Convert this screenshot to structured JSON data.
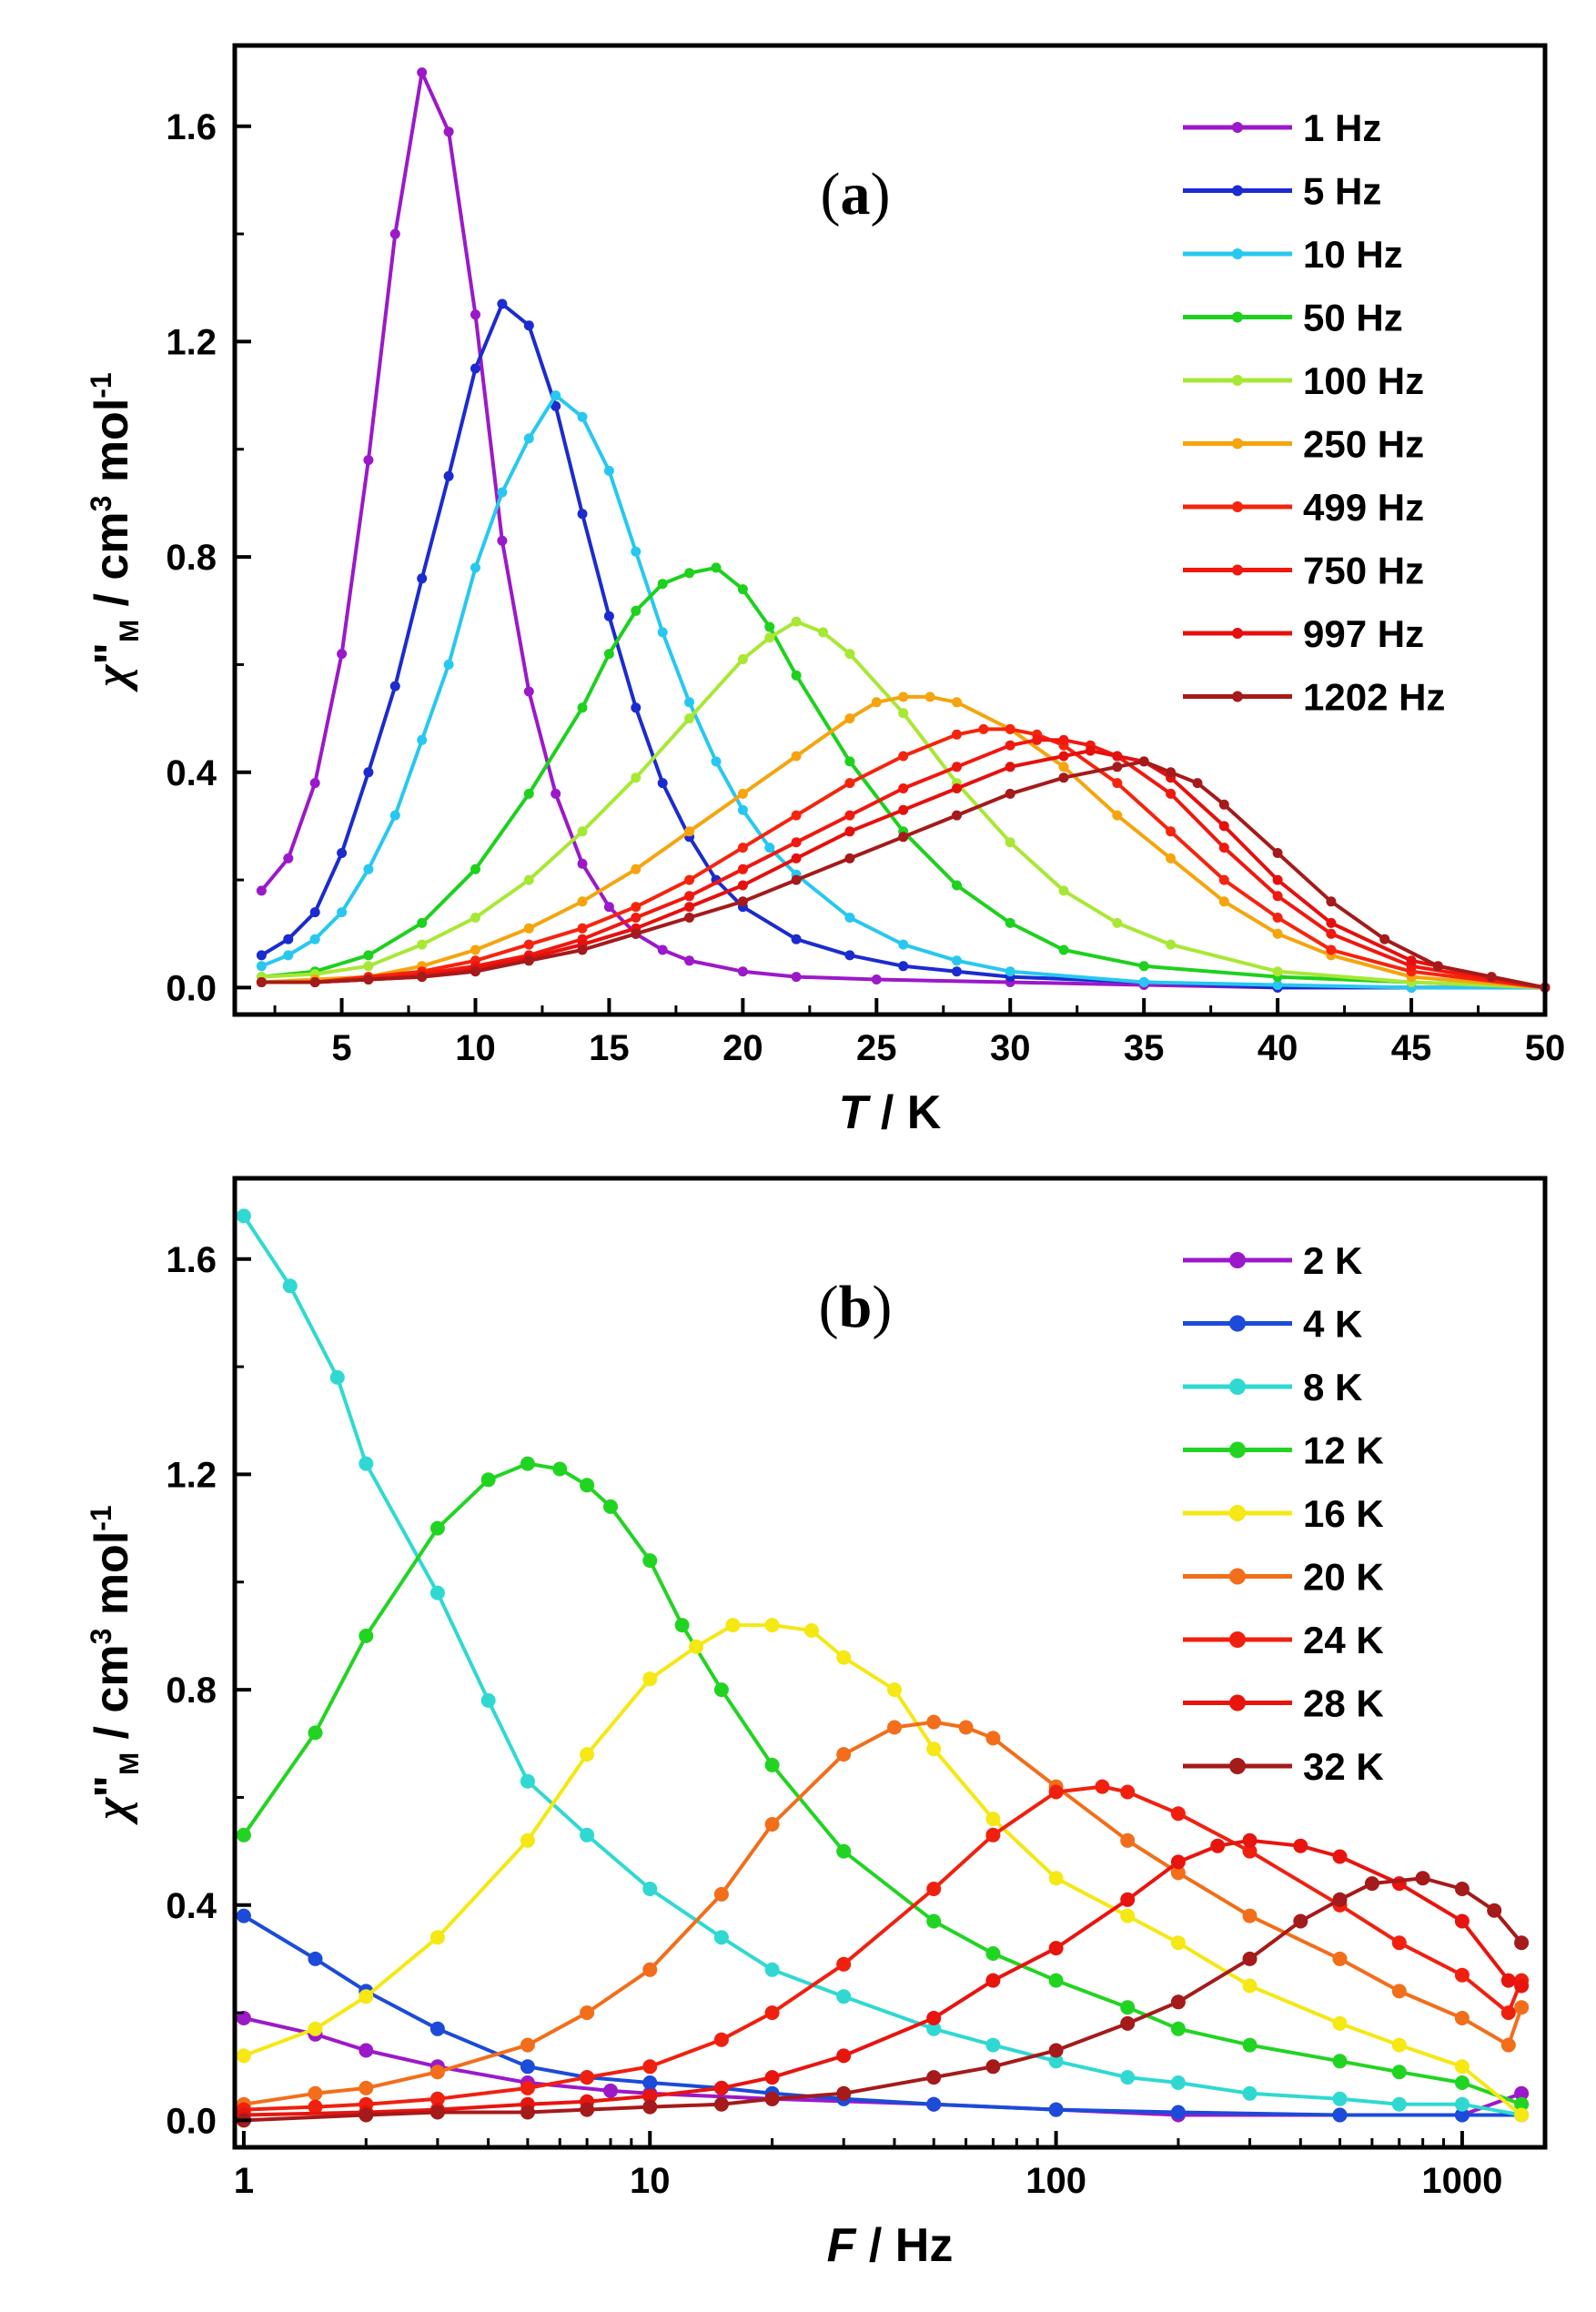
{
  "chart_data": [
    {
      "type": "line",
      "panel_label": {
        "open": "(",
        "letter": "a",
        "close": ")"
      },
      "xlabel": {
        "var": "T",
        "unit": " / K"
      },
      "ylabel": {
        "chi": "χ",
        "primes": "\"",
        "sub": "M",
        "unit": " / cm",
        "sup3": "3",
        "mol": " mol",
        "supm1": "-1"
      },
      "xlim": [
        1,
        50
      ],
      "ylim": [
        -0.05,
        1.75
      ],
      "xscale": "linear",
      "xticks": [
        5,
        10,
        15,
        20,
        25,
        30,
        35,
        40,
        45,
        50
      ],
      "xtick_labels": [
        "5",
        "10",
        "15",
        "20",
        "25",
        "30",
        "35",
        "40",
        "45",
        "50"
      ],
      "yticks": [
        0.0,
        0.4,
        0.8,
        1.2,
        1.6
      ],
      "ytick_labels": [
        "0.0",
        "0.4",
        "0.8",
        "1.2",
        "1.6"
      ],
      "legend_position": "top-right",
      "series": [
        {
          "name": "1 Hz",
          "color": "#9b19c9",
          "x": [
            2,
            3,
            4,
            5,
            6,
            7,
            8,
            9,
            10,
            11,
            12,
            13,
            14,
            15,
            16,
            17,
            18,
            20,
            22,
            25,
            30,
            35,
            40,
            45,
            50
          ],
          "y": [
            0.18,
            0.24,
            0.38,
            0.62,
            0.98,
            1.4,
            1.7,
            1.59,
            1.25,
            0.83,
            0.55,
            0.36,
            0.23,
            0.15,
            0.1,
            0.07,
            0.05,
            0.03,
            0.02,
            0.015,
            0.01,
            0.005,
            0.0,
            0.0,
            0.0
          ]
        },
        {
          "name": "5 Hz",
          "color": "#1b2bd0",
          "x": [
            2,
            3,
            4,
            5,
            6,
            7,
            8,
            9,
            10,
            11,
            12,
            13,
            14,
            15,
            16,
            17,
            18,
            19,
            20,
            22,
            24,
            26,
            28,
            30,
            35,
            40,
            45,
            50
          ],
          "y": [
            0.06,
            0.09,
            0.14,
            0.25,
            0.4,
            0.56,
            0.76,
            0.95,
            1.15,
            1.27,
            1.23,
            1.08,
            0.88,
            0.69,
            0.52,
            0.38,
            0.28,
            0.2,
            0.15,
            0.09,
            0.06,
            0.04,
            0.03,
            0.02,
            0.01,
            0.0,
            0.0,
            0.0
          ]
        },
        {
          "name": "10 Hz",
          "color": "#27c8f0",
          "x": [
            2,
            3,
            4,
            5,
            6,
            7,
            8,
            9,
            10,
            11,
            12,
            13,
            14,
            15,
            16,
            17,
            18,
            19,
            20,
            21,
            22,
            24,
            26,
            28,
            30,
            35,
            40,
            45,
            50
          ],
          "y": [
            0.04,
            0.06,
            0.09,
            0.14,
            0.22,
            0.32,
            0.46,
            0.6,
            0.78,
            0.92,
            1.02,
            1.1,
            1.06,
            0.96,
            0.81,
            0.66,
            0.53,
            0.42,
            0.33,
            0.26,
            0.21,
            0.13,
            0.08,
            0.05,
            0.03,
            0.01,
            0.005,
            0.0,
            0.0
          ]
        },
        {
          "name": "50 Hz",
          "color": "#1dd11d",
          "x": [
            2,
            4,
            6,
            8,
            10,
            12,
            14,
            15,
            16,
            17,
            18,
            19,
            20,
            21,
            22,
            24,
            26,
            28,
            30,
            32,
            35,
            40,
            45,
            50
          ],
          "y": [
            0.02,
            0.03,
            0.06,
            0.12,
            0.22,
            0.36,
            0.52,
            0.62,
            0.7,
            0.75,
            0.77,
            0.78,
            0.74,
            0.67,
            0.58,
            0.42,
            0.29,
            0.19,
            0.12,
            0.07,
            0.04,
            0.02,
            0.01,
            0.0
          ]
        },
        {
          "name": "100 Hz",
          "color": "#a8e835",
          "x": [
            2,
            4,
            6,
            8,
            10,
            12,
            14,
            16,
            18,
            20,
            21,
            22,
            23,
            24,
            26,
            28,
            30,
            32,
            34,
            36,
            40,
            45,
            50
          ],
          "y": [
            0.02,
            0.025,
            0.04,
            0.08,
            0.13,
            0.2,
            0.29,
            0.39,
            0.5,
            0.61,
            0.65,
            0.68,
            0.66,
            0.62,
            0.51,
            0.38,
            0.27,
            0.18,
            0.12,
            0.08,
            0.03,
            0.01,
            0.0
          ]
        },
        {
          "name": "250 Hz",
          "color": "#f5a40d",
          "x": [
            2,
            4,
            6,
            8,
            10,
            12,
            14,
            16,
            18,
            20,
            22,
            24,
            25,
            26,
            27,
            28,
            30,
            32,
            34,
            36,
            38,
            40,
            42,
            45,
            50
          ],
          "y": [
            0.01,
            0.015,
            0.02,
            0.04,
            0.07,
            0.11,
            0.16,
            0.22,
            0.29,
            0.36,
            0.43,
            0.5,
            0.53,
            0.54,
            0.54,
            0.53,
            0.48,
            0.41,
            0.32,
            0.24,
            0.16,
            0.1,
            0.06,
            0.02,
            0.0
          ]
        },
        {
          "name": "499 Hz",
          "color": "#f5240d",
          "x": [
            2,
            4,
            6,
            8,
            10,
            12,
            14,
            16,
            18,
            20,
            22,
            24,
            26,
            28,
            29,
            30,
            31,
            32,
            34,
            36,
            38,
            40,
            42,
            45,
            50
          ],
          "y": [
            0.01,
            0.01,
            0.02,
            0.03,
            0.05,
            0.08,
            0.11,
            0.15,
            0.2,
            0.26,
            0.32,
            0.38,
            0.43,
            0.47,
            0.48,
            0.48,
            0.47,
            0.45,
            0.38,
            0.29,
            0.2,
            0.13,
            0.07,
            0.03,
            0.0
          ]
        },
        {
          "name": "750 Hz",
          "color": "#f0180f",
          "x": [
            2,
            4,
            6,
            8,
            10,
            12,
            14,
            16,
            18,
            20,
            22,
            24,
            26,
            28,
            30,
            31,
            32,
            33,
            34,
            36,
            38,
            40,
            42,
            45,
            50
          ],
          "y": [
            0.01,
            0.01,
            0.015,
            0.025,
            0.04,
            0.06,
            0.09,
            0.13,
            0.17,
            0.22,
            0.27,
            0.32,
            0.37,
            0.41,
            0.45,
            0.46,
            0.46,
            0.45,
            0.43,
            0.36,
            0.26,
            0.17,
            0.1,
            0.04,
            0.0
          ]
        },
        {
          "name": "997 Hz",
          "color": "#e5100d",
          "x": [
            2,
            4,
            6,
            8,
            10,
            12,
            14,
            16,
            18,
            20,
            22,
            24,
            26,
            28,
            30,
            32,
            33,
            34,
            35,
            36,
            38,
            40,
            42,
            45,
            50
          ],
          "y": [
            0.01,
            0.01,
            0.015,
            0.02,
            0.035,
            0.055,
            0.08,
            0.11,
            0.15,
            0.19,
            0.24,
            0.29,
            0.33,
            0.37,
            0.41,
            0.43,
            0.44,
            0.43,
            0.42,
            0.39,
            0.3,
            0.2,
            0.12,
            0.05,
            0.0
          ]
        },
        {
          "name": "1202 Hz",
          "color": "#a51a1a",
          "x": [
            2,
            4,
            6,
            8,
            10,
            12,
            14,
            16,
            18,
            20,
            22,
            24,
            26,
            28,
            30,
            32,
            34,
            35,
            36,
            37,
            38,
            40,
            42,
            44,
            46,
            48,
            50
          ],
          "y": [
            0.01,
            0.01,
            0.015,
            0.02,
            0.03,
            0.05,
            0.07,
            0.1,
            0.13,
            0.16,
            0.2,
            0.24,
            0.28,
            0.32,
            0.36,
            0.39,
            0.41,
            0.42,
            0.4,
            0.38,
            0.34,
            0.25,
            0.16,
            0.09,
            0.04,
            0.02,
            0.0
          ]
        }
      ]
    },
    {
      "type": "line",
      "panel_label": {
        "open": "(",
        "letter": "b",
        "close": ")"
      },
      "xlabel": {
        "var": "F",
        "unit": " / Hz"
      },
      "ylabel": {
        "chi": "χ",
        "primes": "\"",
        "sub": "M",
        "unit": " / cm",
        "sup3": "3",
        "mol": " mol",
        "supm1": "-1"
      },
      "xlim": [
        0.95,
        1600
      ],
      "ylim": [
        -0.05,
        1.75
      ],
      "xscale": "log",
      "xticks": [
        1,
        10,
        100,
        1000
      ],
      "xtick_labels": [
        "1",
        "10",
        "100",
        "1000"
      ],
      "yticks": [
        0.0,
        0.4,
        0.8,
        1.2,
        1.6
      ],
      "ytick_labels": [
        "0.0",
        "0.4",
        "0.8",
        "1.2",
        "1.6"
      ],
      "legend_position": "top-right",
      "series": [
        {
          "name": "2 K",
          "color": "#9b19c9",
          "x": [
            1,
            1.5,
            2,
            3,
            5,
            8,
            10,
            20,
            50,
            100,
            200,
            500,
            1000,
            1400
          ],
          "y": [
            0.19,
            0.16,
            0.13,
            0.1,
            0.07,
            0.055,
            0.05,
            0.04,
            0.03,
            0.02,
            0.01,
            0.01,
            0.01,
            0.05
          ]
        },
        {
          "name": "4 K",
          "color": "#1b4bd8",
          "x": [
            1,
            1.5,
            2,
            3,
            5,
            7,
            10,
            15,
            20,
            30,
            50,
            100,
            200,
            500,
            1000,
            1400
          ],
          "y": [
            0.38,
            0.3,
            0.24,
            0.17,
            0.1,
            0.08,
            0.07,
            0.06,
            0.05,
            0.04,
            0.03,
            0.02,
            0.015,
            0.01,
            0.01,
            0.01
          ]
        },
        {
          "name": "8 K",
          "color": "#2fd9d2",
          "x": [
            1,
            1.3,
            1.7,
            2,
            3,
            4,
            5,
            7,
            10,
            15,
            20,
            30,
            50,
            70,
            100,
            150,
            200,
            300,
            500,
            700,
            1000,
            1400
          ],
          "y": [
            1.68,
            1.55,
            1.38,
            1.22,
            0.98,
            0.78,
            0.63,
            0.53,
            0.43,
            0.34,
            0.28,
            0.23,
            0.17,
            0.14,
            0.11,
            0.08,
            0.07,
            0.05,
            0.04,
            0.03,
            0.03,
            0.01
          ]
        },
        {
          "name": "12 K",
          "color": "#22d422",
          "x": [
            1,
            1.5,
            2,
            3,
            4,
            5,
            6,
            7,
            8,
            10,
            12,
            15,
            20,
            30,
            50,
            70,
            100,
            150,
            200,
            300,
            500,
            700,
            1000,
            1400
          ],
          "y": [
            0.53,
            0.72,
            0.9,
            1.1,
            1.19,
            1.22,
            1.21,
            1.18,
            1.14,
            1.04,
            0.92,
            0.8,
            0.66,
            0.5,
            0.37,
            0.31,
            0.26,
            0.21,
            0.17,
            0.14,
            0.11,
            0.09,
            0.07,
            0.03
          ]
        },
        {
          "name": "16 K",
          "color": "#f5e813",
          "x": [
            1,
            1.5,
            2,
            3,
            5,
            7,
            10,
            13,
            16,
            20,
            25,
            30,
            40,
            50,
            70,
            100,
            150,
            200,
            300,
            500,
            700,
            1000,
            1400
          ],
          "y": [
            0.12,
            0.17,
            0.23,
            0.34,
            0.52,
            0.68,
            0.82,
            0.88,
            0.92,
            0.92,
            0.91,
            0.86,
            0.8,
            0.69,
            0.56,
            0.45,
            0.38,
            0.33,
            0.25,
            0.18,
            0.14,
            0.1,
            0.01
          ]
        },
        {
          "name": "20 K",
          "color": "#f26e1a",
          "x": [
            1,
            1.5,
            2,
            3,
            5,
            7,
            10,
            15,
            20,
            30,
            40,
            50,
            60,
            70,
            100,
            150,
            200,
            300,
            500,
            700,
            1000,
            1300,
            1400
          ],
          "y": [
            0.03,
            0.05,
            0.06,
            0.09,
            0.14,
            0.2,
            0.28,
            0.42,
            0.55,
            0.68,
            0.73,
            0.74,
            0.73,
            0.71,
            0.62,
            0.52,
            0.46,
            0.38,
            0.3,
            0.24,
            0.19,
            0.14,
            0.21
          ]
        },
        {
          "name": "24 K",
          "color": "#f0200f",
          "x": [
            1,
            1.5,
            2,
            3,
            5,
            7,
            10,
            15,
            20,
            30,
            50,
            70,
            100,
            130,
            150,
            200,
            300,
            500,
            700,
            1000,
            1300,
            1400
          ],
          "y": [
            0.02,
            0.025,
            0.03,
            0.04,
            0.06,
            0.08,
            0.1,
            0.15,
            0.2,
            0.29,
            0.43,
            0.53,
            0.61,
            0.62,
            0.61,
            0.57,
            0.5,
            0.4,
            0.33,
            0.27,
            0.2,
            0.26
          ]
        },
        {
          "name": "28 K",
          "color": "#e8140e",
          "x": [
            1,
            2,
            3,
            5,
            7,
            10,
            15,
            20,
            30,
            50,
            70,
            100,
            150,
            200,
            250,
            300,
            400,
            500,
            700,
            1000,
            1300,
            1400
          ],
          "y": [
            0.01,
            0.015,
            0.02,
            0.03,
            0.035,
            0.045,
            0.06,
            0.08,
            0.12,
            0.19,
            0.26,
            0.32,
            0.41,
            0.48,
            0.51,
            0.52,
            0.51,
            0.49,
            0.44,
            0.37,
            0.26,
            0.25
          ]
        },
        {
          "name": "32 K",
          "color": "#a51a1a",
          "x": [
            1,
            2,
            3,
            5,
            7,
            10,
            15,
            20,
            30,
            50,
            70,
            100,
            150,
            200,
            300,
            400,
            500,
            600,
            800,
            1000,
            1200,
            1400
          ],
          "y": [
            0.0,
            0.01,
            0.015,
            0.015,
            0.02,
            0.025,
            0.03,
            0.04,
            0.05,
            0.08,
            0.1,
            0.13,
            0.18,
            0.22,
            0.3,
            0.37,
            0.41,
            0.44,
            0.45,
            0.43,
            0.39,
            0.33
          ]
        }
      ]
    }
  ]
}
